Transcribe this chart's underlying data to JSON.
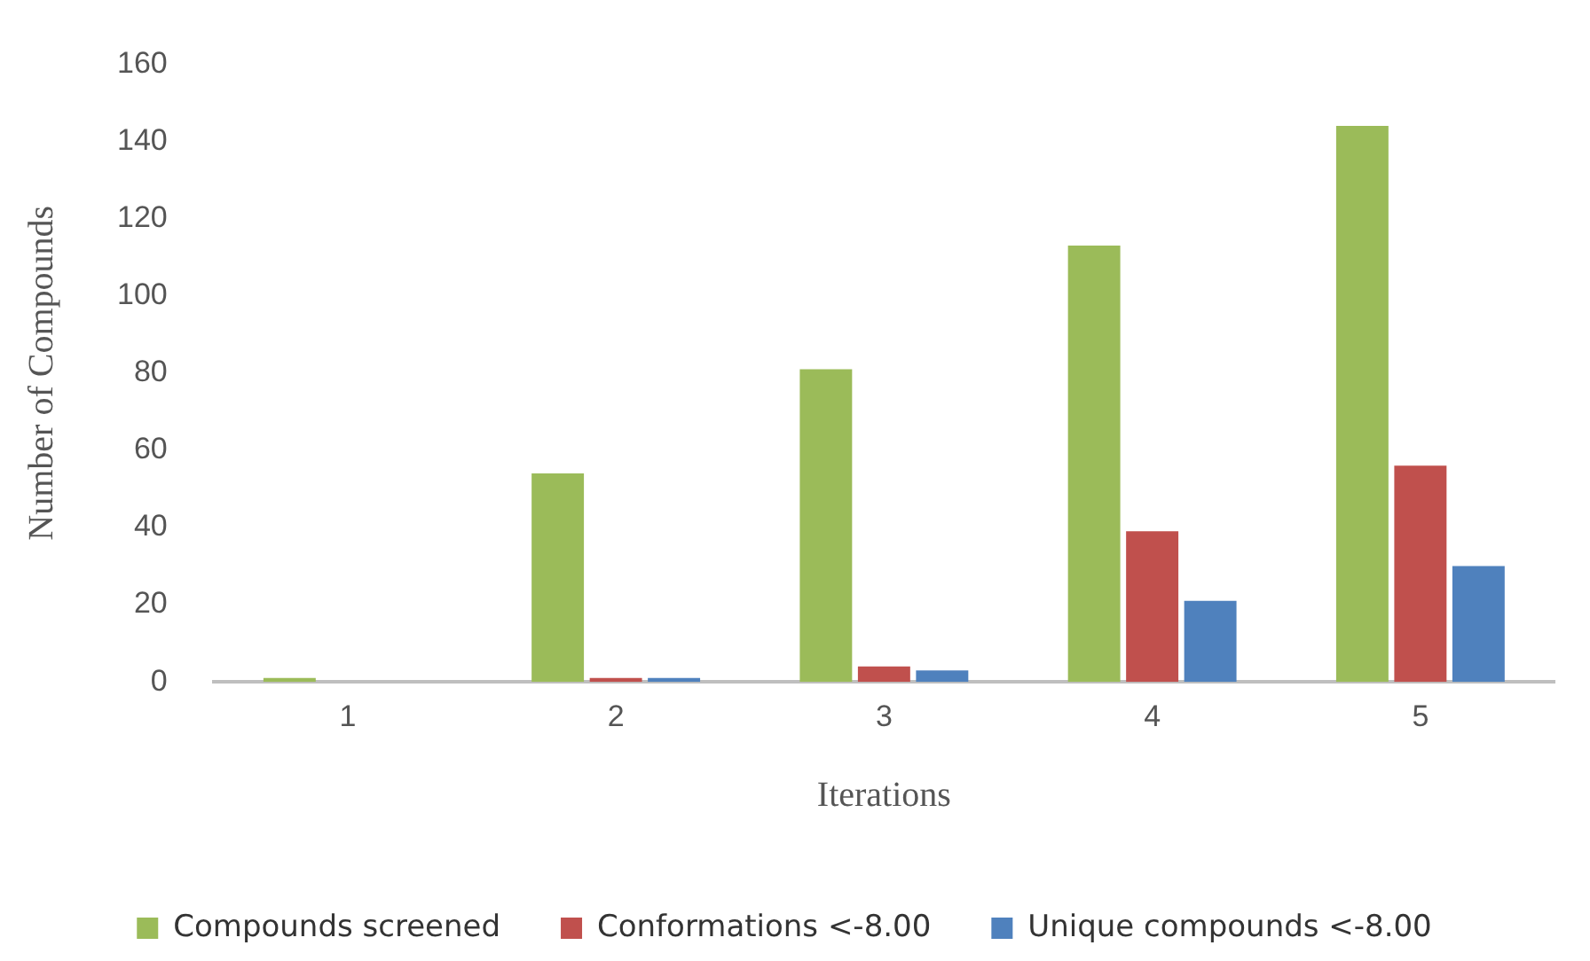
{
  "chart_data": {
    "type": "bar",
    "xlabel": "Iterations",
    "ylabel": "Number of Compounds",
    "categories": [
      "1",
      "2",
      "3",
      "4",
      "5"
    ],
    "series": [
      {
        "name": "Compounds screened",
        "color": "#9bbb59",
        "values": [
          1,
          54,
          81,
          113,
          144
        ]
      },
      {
        "name": "Conformations <-8.00",
        "color": "#c0504d",
        "values": [
          0,
          1,
          4,
          39,
          56
        ]
      },
      {
        "name": "Unique compounds <-8.00",
        "color": "#4f81bd",
        "values": [
          0,
          1,
          3,
          21,
          30
        ]
      }
    ],
    "ylim": [
      0,
      160
    ],
    "yticks": [
      0,
      20,
      40,
      60,
      80,
      100,
      120,
      140,
      160
    ],
    "grid": false,
    "legend": "bottom"
  }
}
